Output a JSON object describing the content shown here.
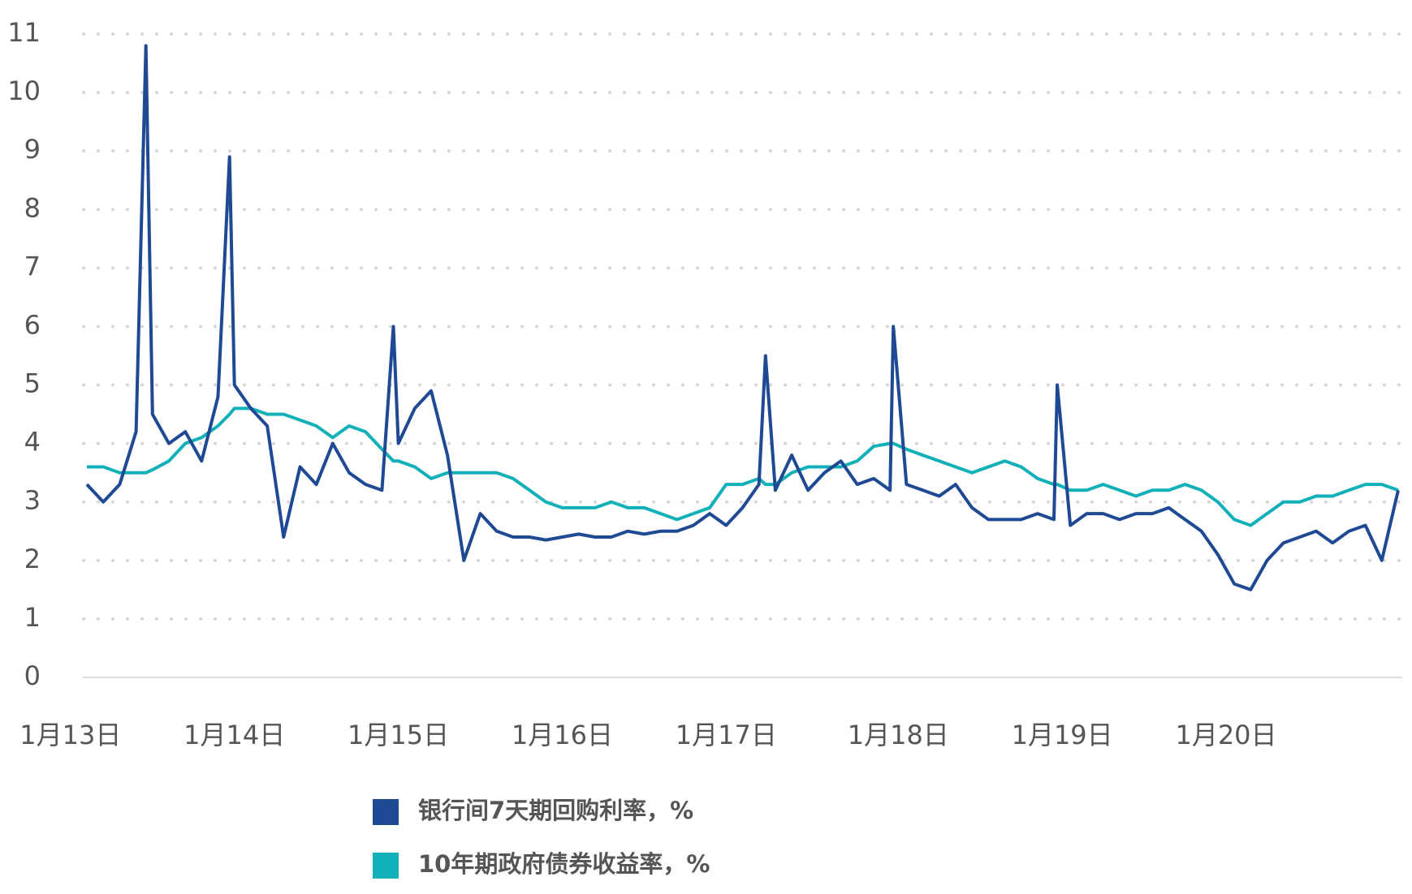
{
  "chart_data": {
    "type": "line",
    "x": [
      13.1,
      13.2,
      13.3,
      13.4,
      13.46,
      13.5,
      13.6,
      13.7,
      13.8,
      13.9,
      13.97,
      14.0,
      14.1,
      14.2,
      14.3,
      14.4,
      14.5,
      14.6,
      14.7,
      14.8,
      14.9,
      14.97,
      15.0,
      15.1,
      15.2,
      15.3,
      15.4,
      15.5,
      15.6,
      15.7,
      15.8,
      15.9,
      16.0,
      16.1,
      16.2,
      16.3,
      16.4,
      16.5,
      16.6,
      16.7,
      16.8,
      16.9,
      17.0,
      17.1,
      17.2,
      17.24,
      17.3,
      17.4,
      17.5,
      17.6,
      17.7,
      17.8,
      17.9,
      18.0,
      18.02,
      18.1,
      18.2,
      18.3,
      18.4,
      18.5,
      18.6,
      18.7,
      18.8,
      18.9,
      19.0,
      19.02,
      19.1,
      19.2,
      19.3,
      19.4,
      19.5,
      19.6,
      19.7,
      19.8,
      19.9,
      20.0,
      20.1,
      20.2,
      20.3,
      20.4,
      20.5,
      20.6,
      20.7,
      20.8,
      20.9,
      21.0,
      21.1
    ],
    "series": [
      {
        "name": "银行间7天期回购利率，%",
        "color": "#1f4a93",
        "values": [
          3.3,
          3.0,
          3.3,
          4.2,
          10.8,
          4.5,
          4.0,
          4.2,
          3.7,
          4.8,
          8.9,
          5.0,
          4.6,
          4.3,
          2.4,
          3.6,
          3.3,
          4.0,
          3.5,
          3.3,
          3.2,
          6.0,
          4.0,
          4.6,
          4.9,
          3.8,
          2.0,
          2.8,
          2.5,
          2.4,
          2.4,
          2.35,
          2.4,
          2.45,
          2.4,
          2.4,
          2.5,
          2.45,
          2.5,
          2.5,
          2.6,
          2.8,
          2.6,
          2.9,
          3.3,
          5.5,
          3.2,
          3.8,
          3.2,
          3.5,
          3.7,
          3.3,
          3.4,
          3.2,
          6.0,
          3.3,
          3.2,
          3.1,
          3.3,
          2.9,
          2.7,
          2.7,
          2.7,
          2.8,
          2.7,
          5.0,
          2.6,
          2.8,
          2.8,
          2.7,
          2.8,
          2.8,
          2.9,
          2.7,
          2.5,
          2.1,
          1.6,
          1.5,
          2.0,
          2.3,
          2.4,
          2.5,
          2.3,
          2.5,
          2.6,
          2.0,
          3.2
        ]
      },
      {
        "name": "10年期政府债券收益率，%",
        "color": "#12b0b8",
        "values": [
          3.6,
          3.6,
          3.5,
          3.5,
          3.5,
          3.55,
          3.7,
          4.0,
          4.1,
          4.3,
          4.5,
          4.6,
          4.6,
          4.5,
          4.5,
          4.4,
          4.3,
          4.1,
          4.3,
          4.2,
          3.9,
          3.7,
          3.7,
          3.6,
          3.4,
          3.5,
          3.5,
          3.5,
          3.5,
          3.4,
          3.2,
          3.0,
          2.9,
          2.9,
          2.9,
          3.0,
          2.9,
          2.9,
          2.8,
          2.7,
          2.8,
          2.9,
          3.3,
          3.3,
          3.4,
          3.3,
          3.3,
          3.5,
          3.6,
          3.6,
          3.6,
          3.7,
          3.95,
          4.0,
          4.0,
          3.9,
          3.8,
          3.7,
          3.6,
          3.5,
          3.6,
          3.7,
          3.6,
          3.4,
          3.3,
          3.3,
          3.2,
          3.2,
          3.3,
          3.2,
          3.1,
          3.2,
          3.2,
          3.3,
          3.2,
          3.0,
          2.7,
          2.6,
          2.8,
          3.0,
          3.0,
          3.1,
          3.1,
          3.2,
          3.3,
          3.3,
          3.2
        ]
      }
    ],
    "xlim": [
      13.08,
      21.12
    ],
    "xticks": [
      {
        "value": 13,
        "label": "1月13日"
      },
      {
        "value": 14,
        "label": "1月14日"
      },
      {
        "value": 15,
        "label": "1月15日"
      },
      {
        "value": 16,
        "label": "1月16日"
      },
      {
        "value": 17,
        "label": "1月17日"
      },
      {
        "value": 18.05,
        "label": "1月18日"
      },
      {
        "value": 19.05,
        "label": "1月19日"
      },
      {
        "value": 20.05,
        "label": "1月20日"
      }
    ],
    "ylim": [
      0,
      11
    ],
    "yticks": [
      0,
      1,
      2,
      3,
      4,
      5,
      6,
      7,
      8,
      9,
      10,
      11
    ],
    "grid": true
  }
}
